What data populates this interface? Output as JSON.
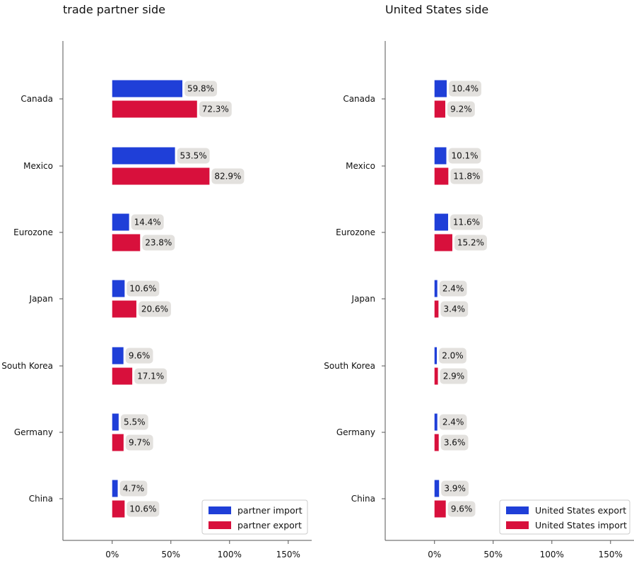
{
  "chart_data": [
    {
      "type": "bar",
      "orientation": "horizontal",
      "title": "trade partner side",
      "categories": [
        "Canada",
        "Mexico",
        "Eurozone",
        "Japan",
        "South Korea",
        "Germany",
        "China"
      ],
      "series": [
        {
          "name": "partner import",
          "color": "#1f3fd8",
          "values": [
            59.8,
            53.5,
            14.4,
            10.6,
            9.6,
            5.5,
            4.7
          ],
          "labels": [
            "59.8%",
            "53.5%",
            "14.4%",
            "10.6%",
            "9.6%",
            "5.5%",
            "4.7%"
          ]
        },
        {
          "name": "partner export",
          "color": "#d8103c",
          "values": [
            72.3,
            82.9,
            23.8,
            20.6,
            17.1,
            9.7,
            10.6
          ],
          "labels": [
            "72.3%",
            "82.9%",
            "23.8%",
            "20.6%",
            "17.1%",
            "9.7%",
            "10.6%"
          ]
        }
      ],
      "xticks": [
        "0%",
        "50%",
        "100%",
        "150%"
      ],
      "xtick_values": [
        0,
        50,
        100,
        150
      ],
      "xlim": [
        -42,
        170
      ],
      "grid": false,
      "legend_position": "bottom-right"
    },
    {
      "type": "bar",
      "orientation": "horizontal",
      "title": "United States side",
      "categories": [
        "Canada",
        "Mexico",
        "Eurozone",
        "Japan",
        "South Korea",
        "Germany",
        "China"
      ],
      "series": [
        {
          "name": "United States export",
          "color": "#1f3fd8",
          "values": [
            10.4,
            10.1,
            11.6,
            2.4,
            2.0,
            2.4,
            3.9
          ],
          "labels": [
            "10.4%",
            "10.1%",
            "11.6%",
            "2.4%",
            "2.0%",
            "2.4%",
            "3.9%"
          ]
        },
        {
          "name": "United States import",
          "color": "#d8103c",
          "values": [
            9.2,
            11.8,
            15.2,
            3.4,
            2.9,
            3.6,
            9.6
          ],
          "labels": [
            "9.2%",
            "11.8%",
            "15.2%",
            "3.4%",
            "2.9%",
            "3.6%",
            "9.6%"
          ]
        }
      ],
      "xticks": [
        "0%",
        "50%",
        "100%",
        "150%"
      ],
      "xtick_values": [
        0,
        50,
        100,
        150
      ],
      "xlim": [
        -42,
        170
      ],
      "grid": false,
      "legend_position": "bottom-right"
    }
  ]
}
